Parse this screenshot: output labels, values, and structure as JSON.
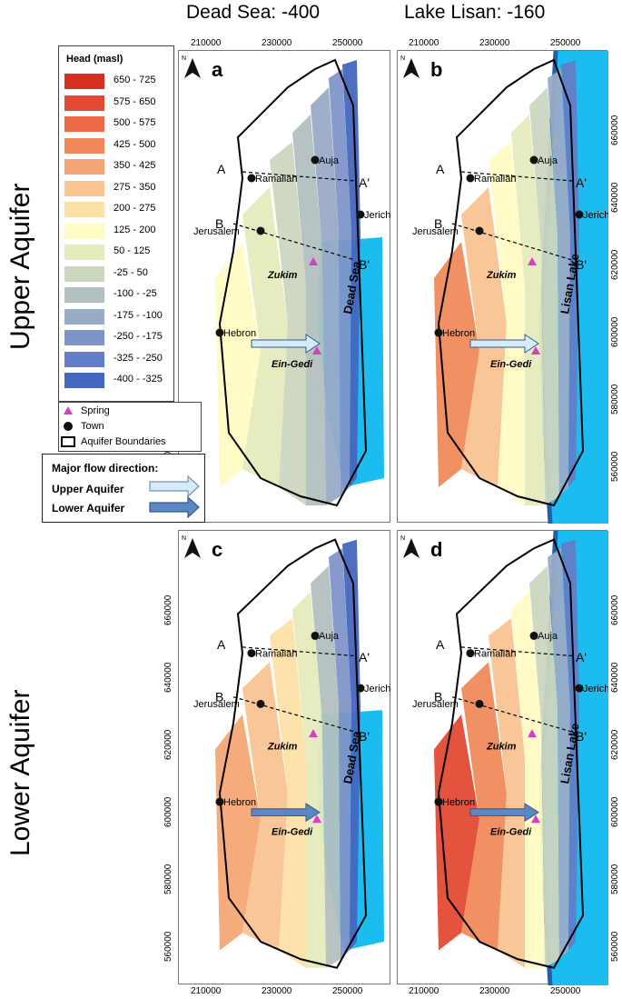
{
  "columns": {
    "left": "Dead Sea: -400",
    "right": "Lake Lisan: -160"
  },
  "rows": {
    "top": "Upper Aquifer",
    "bottom": "Lower Aquifer"
  },
  "legend": {
    "title": "Head (masl)",
    "classes": [
      {
        "label": "650 - 725",
        "color": "#d7301f"
      },
      {
        "label": "575 - 650",
        "color": "#e34a33"
      },
      {
        "label": "500 - 575",
        "color": "#ec6a46"
      },
      {
        "label": "425 - 500",
        "color": "#f08a5b"
      },
      {
        "label": "350 - 425",
        "color": "#f5a676"
      },
      {
        "label": "275 - 350",
        "color": "#f9c491"
      },
      {
        "label": "200 - 275",
        "color": "#fde0a8"
      },
      {
        "label": "125 - 200",
        "color": "#fffbc4"
      },
      {
        "label": "50 - 125",
        "color": "#e6ebbd"
      },
      {
        "label": "-25 - 50",
        "color": "#ccd6bf"
      },
      {
        "label": "-100 - -25",
        "color": "#b3c0c0"
      },
      {
        "label": "-175 - -100",
        "color": "#9aabc6"
      },
      {
        "label": "-250 - -175",
        "color": "#7f95c9"
      },
      {
        "label": "-325 - -250",
        "color": "#627ec7"
      },
      {
        "label": "-400 - -325",
        "color": "#4467be"
      }
    ],
    "symbols": {
      "spring": "Spring",
      "town": "Town",
      "boundary": "Aquifer Boundaries"
    },
    "flow": {
      "title": "Major flow direction:",
      "upper": "Upper Aquifer",
      "lower": "Lower Aquifer"
    }
  },
  "panels": [
    {
      "id": "a",
      "lake": "Dead Sea"
    },
    {
      "id": "b",
      "lake": "Lisan Lake"
    },
    {
      "id": "c",
      "lake": "Dead Sea"
    },
    {
      "id": "d",
      "lake": "Lisan Lake"
    }
  ],
  "places": {
    "towns": [
      "Auja",
      "Ramallah",
      "Jericho",
      "Jerusalem",
      "Hebron"
    ],
    "springs": [
      "Zukim",
      "Ein-Gedi"
    ],
    "sections": [
      "A",
      "A'",
      "B",
      "B'"
    ]
  },
  "north_label": "N",
  "axes": {
    "x_ticks": [
      "210000",
      "230000",
      "250000"
    ],
    "y_ticks": [
      "660000",
      "640000",
      "620000",
      "600000",
      "580000",
      "560000"
    ]
  },
  "colors": {
    "lake": "#1bbcef",
    "shore": "#1f5fae",
    "upper_arrow": "#d6ebf8",
    "lower_arrow": "#5b87c3"
  }
}
